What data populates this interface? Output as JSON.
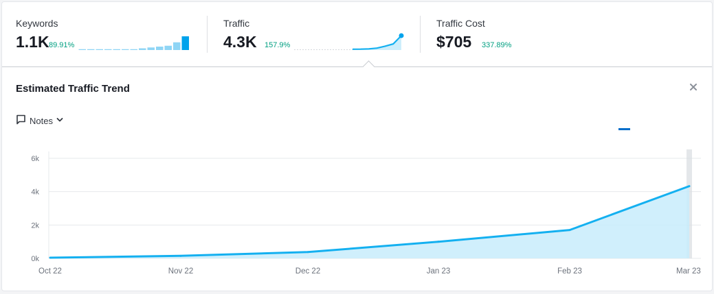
{
  "metrics": [
    {
      "label": "Keywords",
      "value": "1.1K",
      "delta": "89.91%"
    },
    {
      "label": "Traffic",
      "value": "4.3K",
      "delta": "157.9%"
    },
    {
      "label": "Traffic Cost",
      "value": "$705",
      "delta": "337.89%"
    }
  ],
  "panel": {
    "title": "Estimated Traffic Trend"
  },
  "notes": {
    "label": "Notes"
  },
  "colors": {
    "line": "#14b0f0",
    "area": "#c8ecfb",
    "grid": "#e6e8eb",
    "axis_text": "#6c727c",
    "positive": "#009f81",
    "legend": "#006dca"
  },
  "sparklines": {
    "keywords": [
      1,
      1,
      1,
      1,
      1,
      1,
      1,
      2,
      3,
      4,
      5,
      9,
      16
    ],
    "traffic": [
      40,
      60,
      150,
      400,
      1000,
      1700,
      4330
    ]
  },
  "chart_data": {
    "type": "area",
    "title": "",
    "xlabel": "",
    "ylabel": "",
    "categories": [
      "Oct 22",
      "Nov 22",
      "Dec 22",
      "Jan 23",
      "Feb 23",
      "Mar 23"
    ],
    "x_tick_labels": [
      "Oct 22",
      "Nov 22",
      "Dec 22",
      "Jan 23",
      "Feb 23",
      "Mar 23"
    ],
    "y_tick_labels": [
      "0k",
      "2k",
      "4k",
      "6k"
    ],
    "y_ticks": [
      0,
      2000,
      4000,
      6000
    ],
    "ylim": [
      0,
      6000
    ],
    "grid": true,
    "series": [
      {
        "values": [
          40,
          150,
          380,
          1000,
          1700,
          4330
        ]
      }
    ]
  }
}
